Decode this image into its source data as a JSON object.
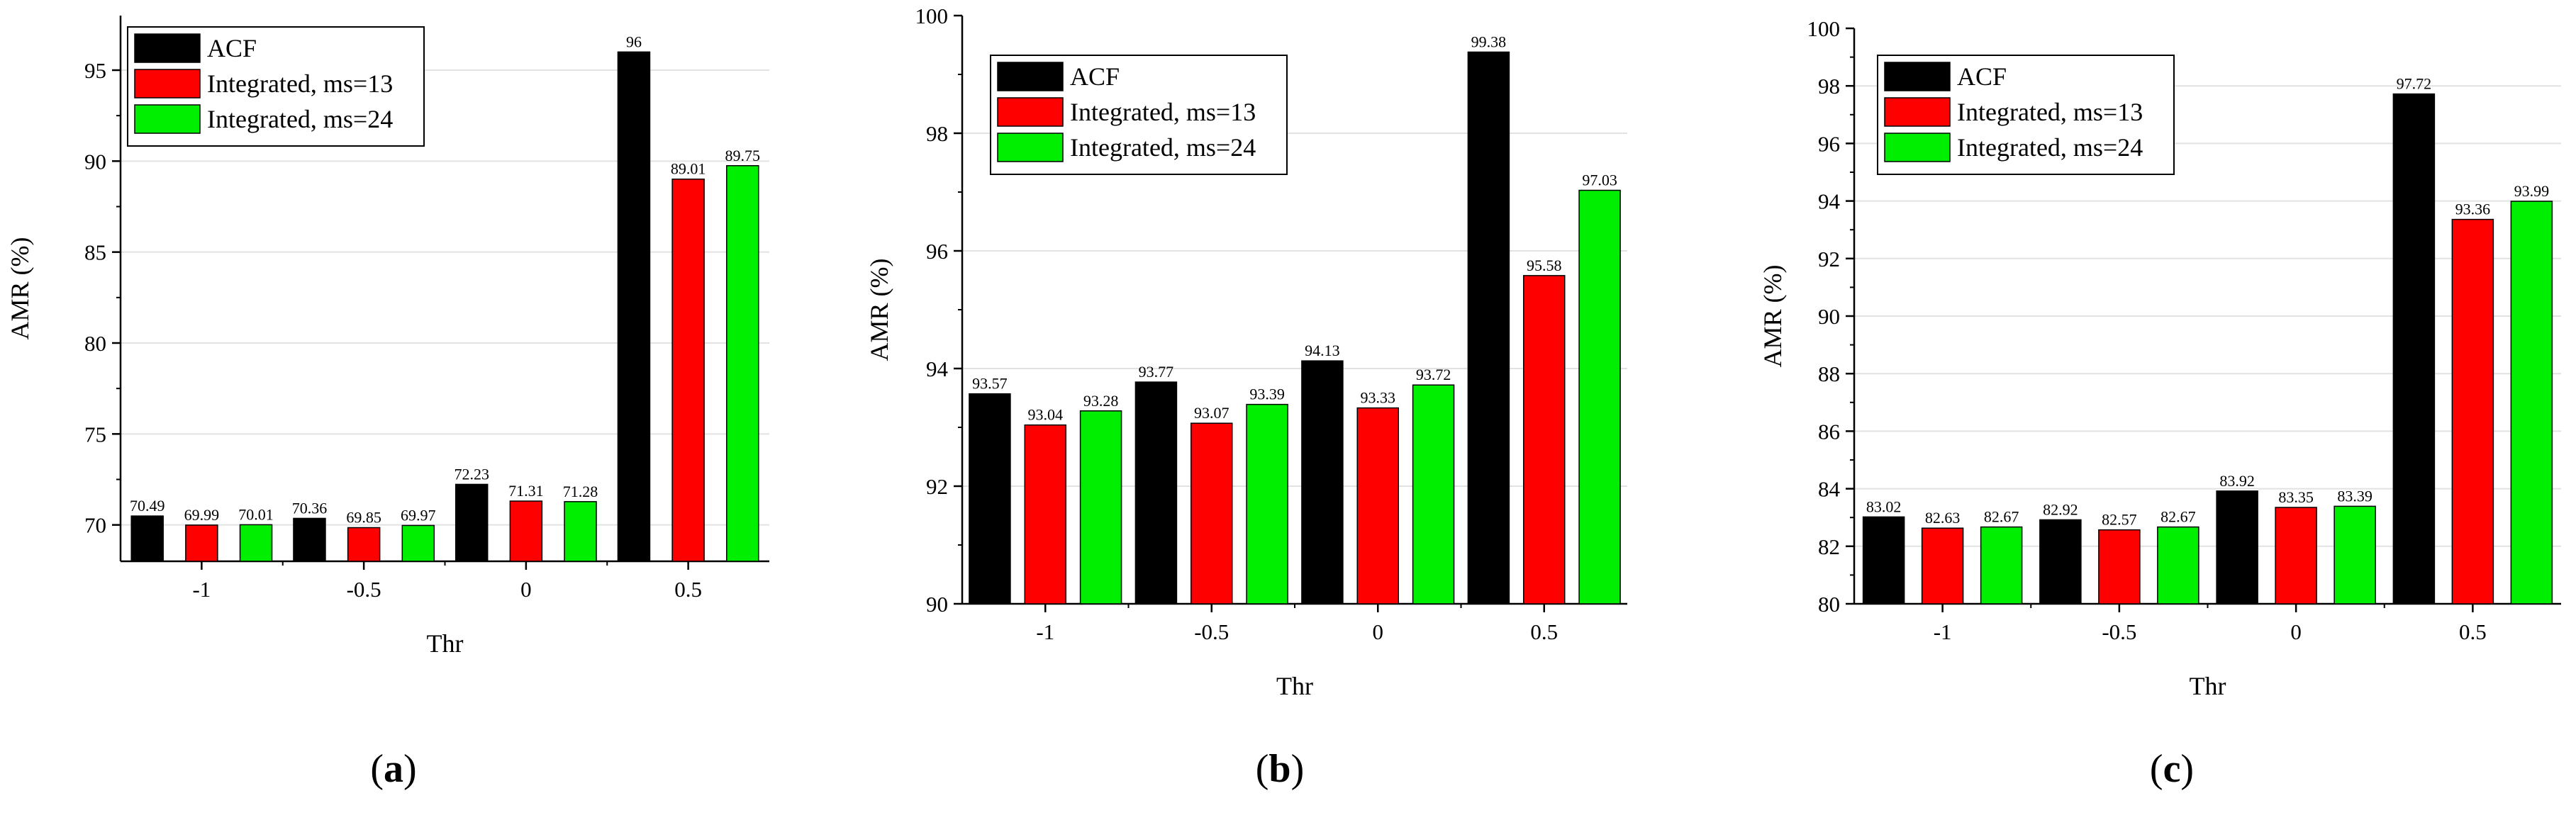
{
  "figure": {
    "panel_labels": [
      {
        "open": "(",
        "letter": "a",
        "close": ")"
      },
      {
        "open": "(",
        "letter": "b",
        "close": ")"
      },
      {
        "open": "(",
        "letter": "c",
        "close": ")"
      }
    ]
  },
  "colors": {
    "ACF": "#000000",
    "Integrated, ms=13": "#ff0000",
    "Integrated, ms=24": "#00ee00"
  },
  "chart_data": [
    {
      "type": "bar",
      "title": "",
      "xlabel": "Thr",
      "ylabel": "AMR (%)",
      "categories": [
        "-1",
        "-0.5",
        "0",
        "0.5"
      ],
      "ylim": [
        68,
        98
      ],
      "yticks": [
        70,
        75,
        80,
        85,
        90,
        95
      ],
      "ytick_labels": [
        "70",
        "75",
        "80",
        "85",
        "90",
        "95"
      ],
      "grid": true,
      "legend": "top-left",
      "series": [
        {
          "name": "ACF",
          "values": [
            70.49,
            70.36,
            72.23,
            96
          ],
          "labels": [
            "70.49",
            "70.36",
            "72.23",
            "96"
          ]
        },
        {
          "name": "Integrated, ms=13",
          "values": [
            69.99,
            69.85,
            71.31,
            89.01
          ],
          "labels": [
            "69.99",
            "69.85",
            "71.31",
            "89.01"
          ]
        },
        {
          "name": "Integrated, ms=24",
          "values": [
            70.01,
            69.97,
            71.28,
            89.75
          ],
          "labels": [
            "70.01",
            "69.97",
            "71.28",
            "89.75"
          ]
        }
      ]
    },
    {
      "type": "bar",
      "title": "",
      "xlabel": "Thr",
      "ylabel": "AMR (%)",
      "categories": [
        "-1",
        "-0.5",
        "0",
        "0.5"
      ],
      "ylim": [
        90,
        100
      ],
      "yticks": [
        90,
        92,
        94,
        96,
        98,
        100
      ],
      "ytick_labels": [
        "90",
        "92",
        "94",
        "96",
        "98",
        "100"
      ],
      "grid": true,
      "legend": "top-left",
      "series": [
        {
          "name": "ACF",
          "values": [
            93.57,
            93.77,
            94.13,
            99.38
          ],
          "labels": [
            "93.57",
            "93.77",
            "94.13",
            "99.38"
          ]
        },
        {
          "name": "Integrated, ms=13",
          "values": [
            93.04,
            93.07,
            93.33,
            95.58
          ],
          "labels": [
            "93.04",
            "93.07",
            "93.33",
            "95.58"
          ]
        },
        {
          "name": "Integrated, ms=24",
          "values": [
            93.28,
            93.39,
            93.72,
            97.03
          ],
          "labels": [
            "93.28",
            "93.39",
            "93.72",
            "97.03"
          ]
        }
      ]
    },
    {
      "type": "bar",
      "title": "",
      "xlabel": "Thr",
      "ylabel": "AMR (%)",
      "categories": [
        "-1",
        "-0.5",
        "0",
        "0.5"
      ],
      "ylim": [
        80,
        100
      ],
      "yticks": [
        80,
        82,
        84,
        86,
        88,
        90,
        92,
        94,
        96,
        98,
        100
      ],
      "ytick_labels": [
        "80",
        "82",
        "84",
        "86",
        "88",
        "90",
        "92",
        "94",
        "96",
        "98",
        "100"
      ],
      "grid": true,
      "legend": "top-left",
      "series": [
        {
          "name": "ACF",
          "values": [
            83.02,
            82.92,
            83.92,
            97.72
          ],
          "labels": [
            "83.02",
            "82.92",
            "83.92",
            "97.72"
          ]
        },
        {
          "name": "Integrated, ms=13",
          "values": [
            82.63,
            82.57,
            83.35,
            93.36
          ],
          "labels": [
            "82.63",
            "82.57",
            "83.35",
            "93.36"
          ]
        },
        {
          "name": "Integrated, ms=24",
          "values": [
            82.67,
            82.67,
            83.39,
            93.99
          ],
          "labels": [
            "82.67",
            "82.67",
            "83.39",
            "93.99"
          ]
        }
      ]
    }
  ]
}
